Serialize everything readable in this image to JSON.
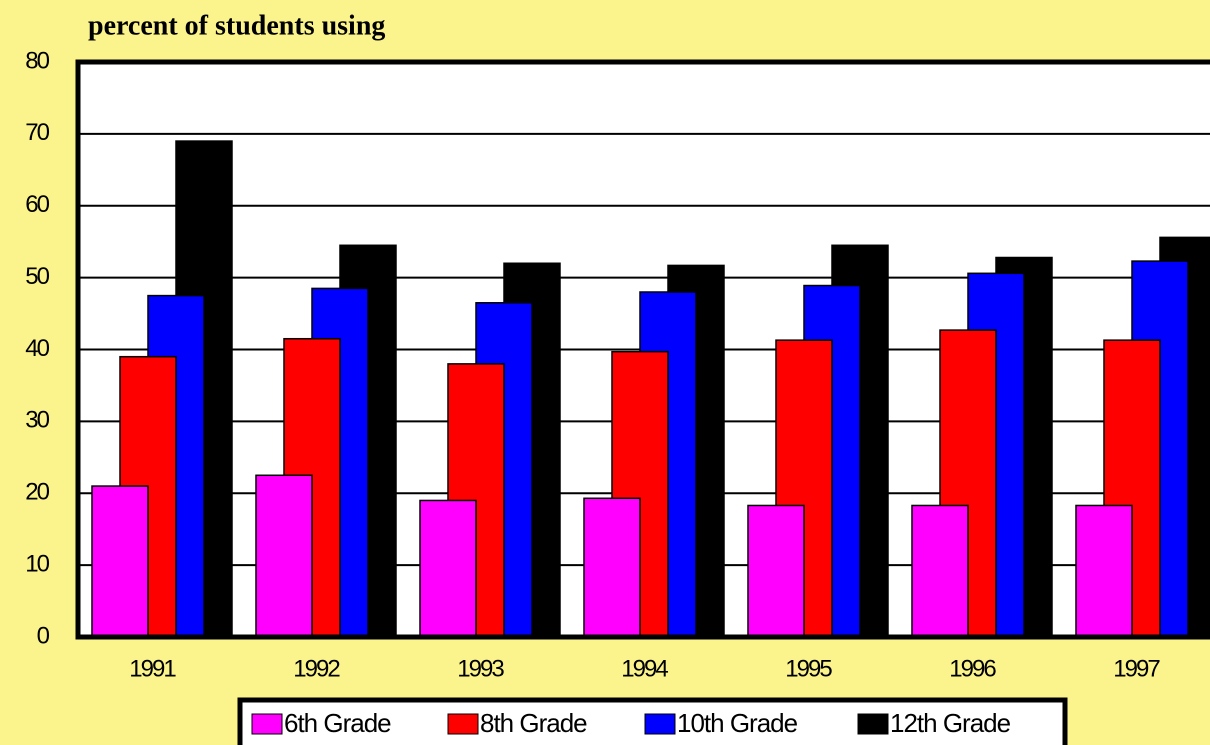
{
  "chart_data": {
    "type": "bar",
    "title": "percent of students using",
    "categories": [
      "1991",
      "1992",
      "1993",
      "1994",
      "1995",
      "1996",
      "1997"
    ],
    "series": [
      {
        "name": "6th Grade",
        "color": "#ff00ff",
        "values": [
          21,
          22.5,
          19,
          19.3,
          18.3,
          18.3,
          18.3
        ]
      },
      {
        "name": "8th Grade",
        "color": "#ff0000",
        "values": [
          39,
          41.5,
          38,
          39.7,
          41.3,
          42.7,
          41.3
        ]
      },
      {
        "name": "10th Grade",
        "color": "#0000ff",
        "values": [
          47.5,
          48.5,
          46.5,
          48,
          48.9,
          50.6,
          52.3
        ]
      },
      {
        "name": "12th Grade",
        "color": "#000000",
        "values": [
          69,
          54.5,
          52,
          51.7,
          54.5,
          52.8,
          55.6
        ]
      }
    ],
    "ylim": [
      0,
      80
    ],
    "yticks": [
      0,
      10,
      20,
      30,
      40,
      50,
      60,
      70,
      80
    ],
    "grid": true,
    "legend": "bottom"
  }
}
